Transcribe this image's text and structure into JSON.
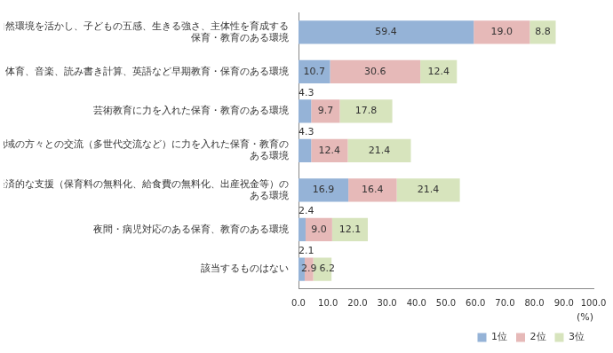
{
  "chart_data": {
    "type": "bar",
    "orientation": "horizontal",
    "stacked": true,
    "data_labels": true,
    "grid": false,
    "legend": "lower right",
    "xlabel": "(%)",
    "categories": [
      "自然環境を活かし、子どもの五感、生きる強さ、主体性を育成する保育・教育のある環境",
      "体育、音楽、読み書き計算、英語など早期教育・保育のある環境",
      "芸術教育に力を入れた保育・教育のある環境",
      "地域の方々との交流（多世代交流など）に力を入れた保育・教育のある環境",
      "経済的な支援（保育料の無料化、給食費の無料化、出産祝金等）のある環境",
      "夜間・病児対応のある保育、教育のある環境",
      "該当するものはない"
    ],
    "series": [
      {
        "name": "1位",
        "color": "#95B3D7",
        "values": [
          59.4,
          10.7,
          4.3,
          4.3,
          16.9,
          2.4,
          2.1
        ],
        "value_labels": [
          "59.4",
          "10.7",
          "4.3",
          "4.3",
          "16.9",
          "2.4",
          "2.1"
        ]
      },
      {
        "name": "2位",
        "color": "#E6B9B8",
        "values": [
          19.0,
          30.6,
          9.7,
          12.4,
          16.4,
          9.0,
          2.9
        ],
        "value_labels": [
          "19.0",
          "30.6",
          "9.7",
          "12.4",
          "16.4",
          "9.0",
          "2.9"
        ]
      },
      {
        "name": "3位",
        "color": "#D7E4BD",
        "values": [
          8.8,
          12.4,
          17.8,
          21.4,
          21.4,
          12.1,
          6.2
        ],
        "value_labels": [
          "8.8",
          "12.4",
          "17.8",
          "21.4",
          "21.4",
          "12.1",
          "6.2"
        ]
      }
    ],
    "xlim": [
      0,
      100
    ],
    "xticks": [
      {
        "value": 0,
        "label": "0.0"
      },
      {
        "value": 10,
        "label": "10.0"
      },
      {
        "value": 20,
        "label": "20.0"
      },
      {
        "value": 30,
        "label": "30.0"
      },
      {
        "value": 40,
        "label": "40.0"
      },
      {
        "value": 50,
        "label": "50.0"
      },
      {
        "value": 60,
        "label": "60.0"
      },
      {
        "value": 70,
        "label": "70.0"
      },
      {
        "value": 80,
        "label": "80.0"
      },
      {
        "value": 90,
        "label": "90.0"
      },
      {
        "value": 100,
        "label": "100.0"
      }
    ]
  }
}
